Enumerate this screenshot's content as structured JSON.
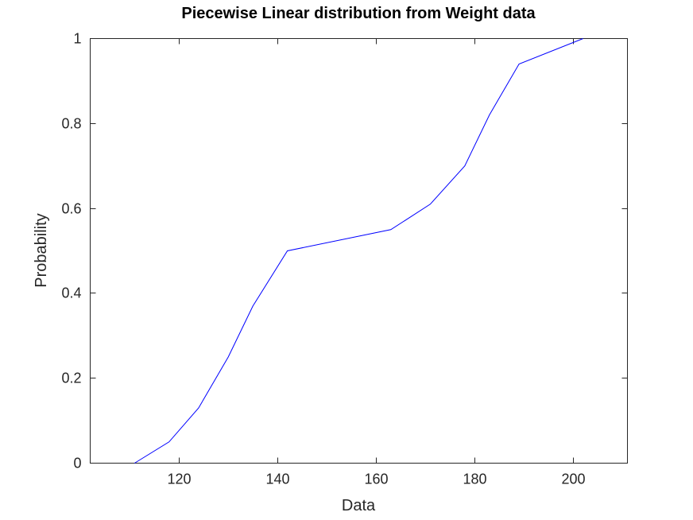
{
  "chart_data": {
    "type": "line",
    "title": "Piecewise Linear distribution from Weight data",
    "xlabel": "Data",
    "ylabel": "Probability",
    "xlim": [
      102,
      211
    ],
    "ylim": [
      0,
      1
    ],
    "xticks": [
      120,
      140,
      160,
      180,
      200
    ],
    "yticks": [
      0,
      0.2,
      0.4,
      0.6,
      0.8,
      1
    ],
    "xtick_labels": [
      "120",
      "140",
      "160",
      "180",
      "200"
    ],
    "ytick_labels": [
      "0",
      "0.2",
      "0.4",
      "0.6",
      "0.8",
      "1"
    ],
    "grid": false,
    "series": [
      {
        "color": "#0000ff",
        "x": [
          111,
          118,
          124,
          130,
          135,
          142,
          163,
          171,
          178,
          183,
          189,
          202
        ],
        "y": [
          0,
          0.05,
          0.13,
          0.25,
          0.37,
          0.5,
          0.55,
          0.61,
          0.7,
          0.82,
          0.94,
          1.0
        ]
      }
    ]
  }
}
